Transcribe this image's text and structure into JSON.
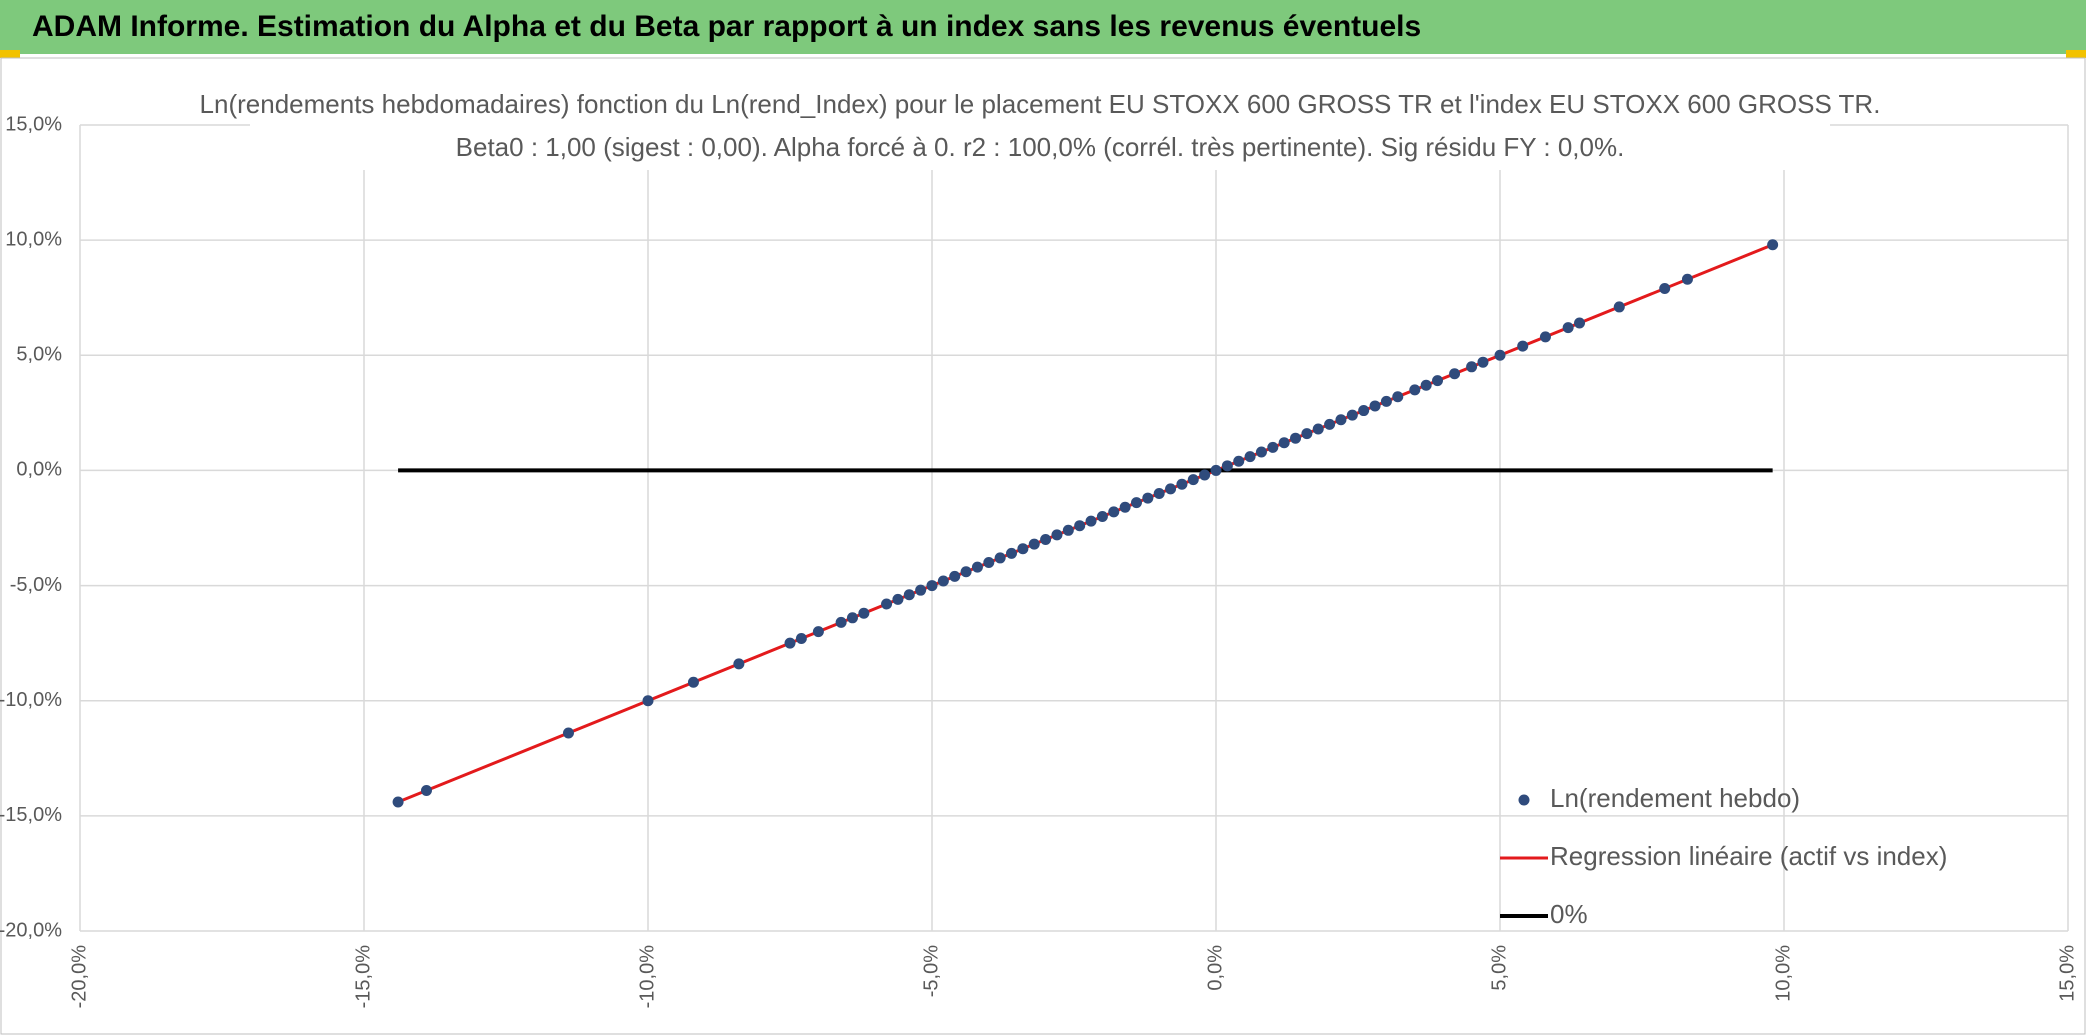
{
  "header": {
    "title": "ADAM Informe. Estimation du Alpha et du Beta par rapport à un index sans les revenus éventuels"
  },
  "chart_data": {
    "type": "scatter",
    "title": "Ln(rendements hebdomadaires) fonction du Ln(rend_Index) pour le placement EU STOXX 600 GROSS TR et l'index EU STOXX 600 GROSS TR.",
    "subtitle": "Beta0 : 1,00 (sigest : 0,00). Alpha forcé à 0. r2 : 100,0% (corrél. très pertinente). Sig résidu FY : 0,0%.",
    "xlim": [
      -20,
      15
    ],
    "ylim": [
      -20,
      15
    ],
    "xticks": [
      {
        "value": -20,
        "label": "-20,0%"
      },
      {
        "value": -15,
        "label": "-15,0%"
      },
      {
        "value": -10,
        "label": "-10,0%"
      },
      {
        "value": -5,
        "label": "-5,0%"
      },
      {
        "value": 0,
        "label": "0,0%"
      },
      {
        "value": 5,
        "label": "5,0%"
      },
      {
        "value": 10,
        "label": "10,0%"
      },
      {
        "value": 15,
        "label": "15,0%"
      }
    ],
    "yticks": [
      {
        "value": -20,
        "label": "-20,0%"
      },
      {
        "value": -15,
        "label": "-15,0%"
      },
      {
        "value": -10,
        "label": "-10,0%"
      },
      {
        "value": -5,
        "label": "-5,0%"
      },
      {
        "value": 0,
        "label": "0,0%"
      },
      {
        "value": 5,
        "label": "5,0%"
      },
      {
        "value": 10,
        "label": "10,0%"
      },
      {
        "value": 15,
        "label": "15,0%"
      }
    ],
    "grid": true,
    "legend": "lower right",
    "series": [
      {
        "name": "Ln(rendement hebdo)",
        "color": "#2f4b7c",
        "mode": "markers",
        "x": [
          -14.4,
          -13.9,
          -11.4,
          -10,
          -9.2,
          -8.4,
          -7.5,
          -7.3,
          -7,
          -6.6,
          -6.4,
          -6.2,
          -5.8,
          -5.6,
          -5.4,
          -5.2,
          -5,
          -4.8,
          -4.6,
          -4.4,
          -4.2,
          -4,
          -3.8,
          -3.6,
          -3.4,
          -3.2,
          -3,
          -2.8,
          -2.6,
          -2.4,
          -2.2,
          -2,
          -1.8,
          -1.6,
          -1.4,
          -1.2,
          -1,
          -0.8,
          -0.6,
          -0.4,
          -0.2,
          0,
          0.2,
          0.4,
          0.6,
          0.8,
          1,
          1.2,
          1.4,
          1.6,
          1.8,
          2,
          2.2,
          2.4,
          2.6,
          2.8,
          3,
          3.2,
          3.5,
          3.7,
          3.9,
          4.2,
          4.5,
          4.7,
          5,
          5.4,
          5.8,
          6.2,
          6.4,
          7.1,
          7.9,
          8.3,
          9.8
        ],
        "values": [
          -14.4,
          -13.9,
          -11.4,
          -10,
          -9.2,
          -8.4,
          -7.5,
          -7.3,
          -7,
          -6.6,
          -6.4,
          -6.2,
          -5.8,
          -5.6,
          -5.4,
          -5.2,
          -5,
          -4.8,
          -4.6,
          -4.4,
          -4.2,
          -4,
          -3.8,
          -3.6,
          -3.4,
          -3.2,
          -3,
          -2.8,
          -2.6,
          -2.4,
          -2.2,
          -2,
          -1.8,
          -1.6,
          -1.4,
          -1.2,
          -1,
          -0.8,
          -0.6,
          -0.4,
          -0.2,
          0,
          0.2,
          0.4,
          0.6,
          0.8,
          1,
          1.2,
          1.4,
          1.6,
          1.8,
          2,
          2.2,
          2.4,
          2.6,
          2.8,
          3,
          3.2,
          3.5,
          3.7,
          3.9,
          4.2,
          4.5,
          4.7,
          5,
          5.4,
          5.8,
          6.2,
          6.4,
          7.1,
          7.9,
          8.3,
          9.8
        ]
      },
      {
        "name": "Regression linéaire (actif vs index)",
        "color": "#e31a1c",
        "mode": "line",
        "x": [
          -14.4,
          9.8
        ],
        "values": [
          -14.4,
          9.8
        ]
      },
      {
        "name": "0%",
        "color": "#000000",
        "mode": "line",
        "x": [
          -14.4,
          9.8
        ],
        "values": [
          0,
          0
        ]
      }
    ]
  }
}
